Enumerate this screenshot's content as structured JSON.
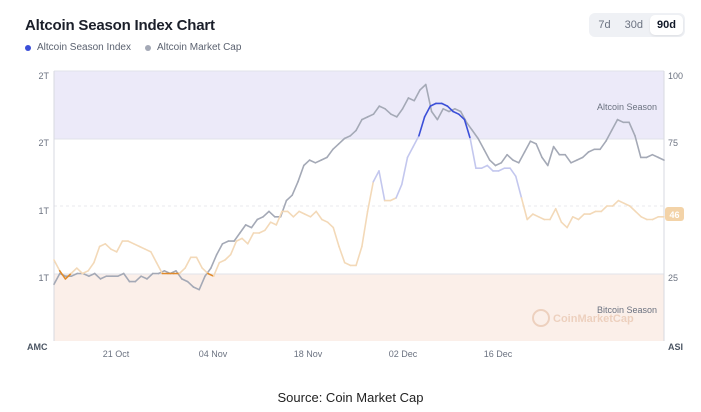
{
  "header": {
    "title": "Altcoin Season Index Chart",
    "range_buttons": [
      "7d",
      "30d",
      "90d"
    ],
    "active_range": "90d"
  },
  "legend": [
    {
      "name": "Altcoin Season Index",
      "color": "#3b4fd8"
    },
    {
      "name": "Altcoin Market Cap",
      "color": "#a4a9b6"
    }
  ],
  "footer": {
    "source": "Source: Coin Market Cap"
  },
  "colors": {
    "altcoin_band": "#eceaf9",
    "bitcoin_band": "#fbefe9",
    "index_high": "#3b4fd8",
    "index_mid_light": "#c3c7ee",
    "index_low_light": "#f3d9b8",
    "index_bitcoin": "#e08a2a",
    "market_cap": "#a4a9b6",
    "badge": "#f3d3a8"
  },
  "chart_data": {
    "type": "line",
    "x_tick_labels": [
      "21 Oct",
      "04 Nov",
      "18 Nov",
      "02 Dec",
      "16 Dec"
    ],
    "left_axis": {
      "tick_labels": [
        "2T",
        "2T",
        "1T",
        "1T"
      ],
      "corner_label": "AMC"
    },
    "right_axis": {
      "ticks": [
        100,
        75,
        50,
        25
      ],
      "tick_labels": [
        "100",
        "75",
        "",
        "25"
      ],
      "corner_label": "ASI",
      "ylim": [
        0,
        100
      ]
    },
    "bands": [
      {
        "label": "Altcoin Season",
        "from": 75,
        "to": 100
      },
      {
        "label": "Bitcoin Season",
        "from": 0,
        "to": 25
      }
    ],
    "current_badge": "46",
    "watermark": "CoinMarketCap",
    "series": [
      {
        "name": "Altcoin Season Index",
        "axis": "right",
        "values": [
          30,
          26,
          23,
          25,
          27,
          25,
          26,
          29,
          35,
          36,
          34,
          33,
          37,
          37,
          36,
          35,
          34,
          33,
          29,
          25,
          25,
          25,
          25,
          27,
          31,
          31,
          27,
          25,
          24,
          29,
          30,
          32,
          37,
          38,
          36,
          40,
          40,
          41,
          44,
          43,
          48,
          48,
          46,
          48,
          47,
          46,
          48,
          45,
          44,
          42,
          35,
          29,
          28,
          28,
          35,
          48,
          59,
          63,
          52,
          52,
          53,
          58,
          68,
          72,
          76,
          83,
          87,
          88,
          88,
          87,
          85,
          84,
          82,
          75,
          64,
          64,
          65,
          63,
          63,
          64,
          64,
          61,
          53,
          45,
          47,
          46,
          45,
          45,
          49,
          44,
          42,
          46,
          45,
          47,
          47,
          48,
          48,
          50,
          50,
          52,
          51,
          50,
          48,
          46,
          45,
          45,
          46,
          46
        ]
      },
      {
        "name": "Altcoin Market Cap",
        "axis": "right",
        "values": [
          21,
          25,
          24,
          24,
          25,
          25,
          24,
          25,
          23,
          24,
          24,
          24,
          25,
          22,
          22,
          24,
          23,
          25,
          25,
          26,
          25,
          26,
          23,
          22,
          20,
          19,
          24,
          27,
          32,
          36,
          37,
          37,
          40,
          43,
          42,
          45,
          46,
          48,
          46,
          46,
          52,
          54,
          59,
          65,
          67,
          66,
          67,
          68,
          71,
          73,
          75,
          76,
          78,
          82,
          83,
          84,
          87,
          86,
          84,
          83,
          86,
          90,
          89,
          93,
          95,
          85,
          82,
          86,
          85,
          86,
          85,
          81,
          78,
          75,
          71,
          67,
          65,
          66,
          69,
          67,
          66,
          70,
          74,
          73,
          68,
          65,
          72,
          69,
          69,
          66,
          67,
          68,
          70,
          71,
          71,
          74,
          78,
          82,
          81,
          81,
          76,
          68,
          68,
          69,
          68,
          67
        ]
      }
    ]
  }
}
